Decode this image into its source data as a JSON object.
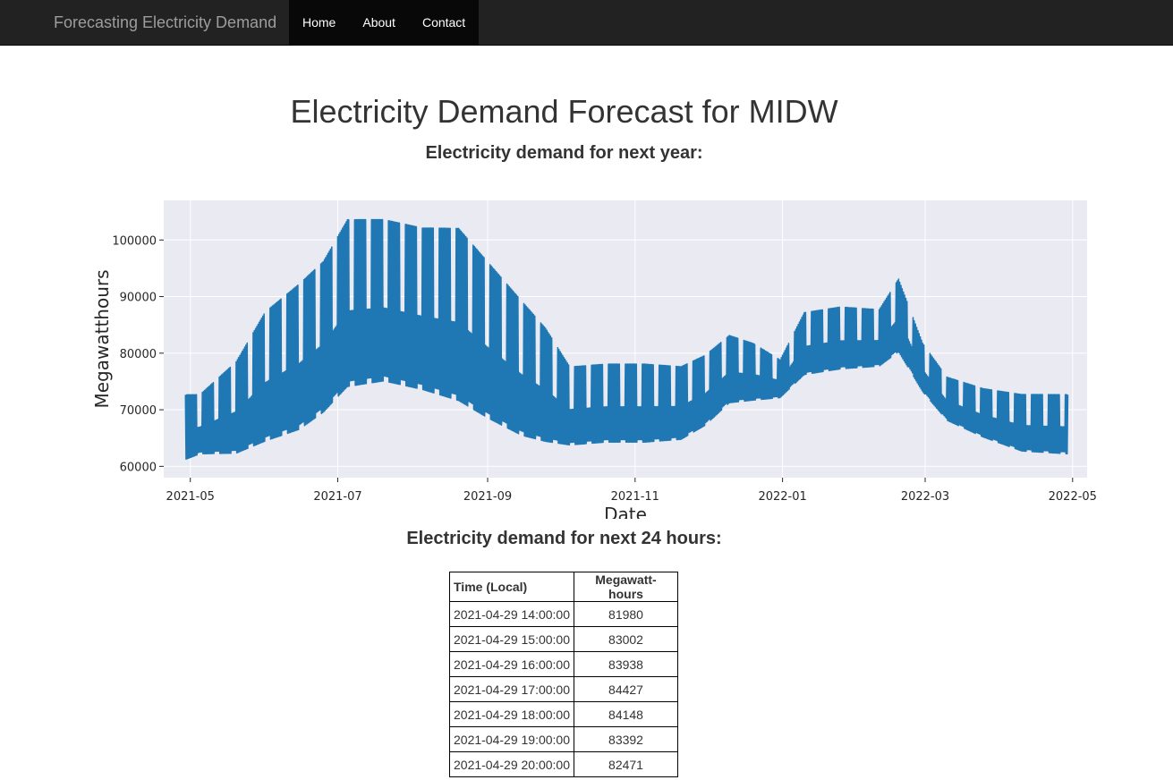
{
  "navbar": {
    "brand": "Forecasting Electricity Demand",
    "links": [
      "Home",
      "About",
      "Contact"
    ]
  },
  "page": {
    "title": "Electricity Demand Forecast for MIDW",
    "year_heading": "Electricity demand for next year:",
    "day_heading": "Electricity demand for next 24 hours:"
  },
  "chart_data": {
    "type": "line",
    "xlabel": "Date",
    "ylabel": "Megawatthours",
    "x_ticks": [
      "2021-05",
      "2021-07",
      "2021-09",
      "2021-11",
      "2022-01",
      "2022-03",
      "2022-05"
    ],
    "y_ticks": [
      60000,
      70000,
      80000,
      90000,
      100000
    ],
    "xlim": [
      "2021-04-20",
      "2022-05-07"
    ],
    "ylim": [
      58000,
      107000
    ],
    "grid": true,
    "color": "#1f77b4",
    "background": "#eaeaf2",
    "envelope": {
      "dates": [
        "2021-04-29",
        "2021-05-05",
        "2021-05-20",
        "2021-06-01",
        "2021-06-15",
        "2021-06-25",
        "2021-07-05",
        "2021-07-20",
        "2021-08-05",
        "2021-08-20",
        "2021-09-01",
        "2021-09-15",
        "2021-09-25",
        "2021-10-05",
        "2021-10-20",
        "2021-11-05",
        "2021-11-20",
        "2021-11-30",
        "2021-12-10",
        "2021-12-20",
        "2021-12-31",
        "2022-01-10",
        "2022-01-25",
        "2022-02-10",
        "2022-02-18",
        "2022-02-28",
        "2022-03-10",
        "2022-03-25",
        "2022-04-10",
        "2022-04-29"
      ],
      "high": [
        73000,
        73000,
        79000,
        88000,
        93000,
        97000,
        104500,
        104500,
        103000,
        103000,
        97000,
        90000,
        85000,
        78000,
        78500,
        78500,
        78000,
        80000,
        83500,
        82000,
        79000,
        87500,
        88500,
        88000,
        93500,
        82000,
        76000,
        74000,
        73000,
        73000
      ],
      "low": [
        61000,
        62000,
        62000,
        64000,
        66000,
        69000,
        73500,
        74500,
        73000,
        71000,
        68000,
        65000,
        64000,
        63500,
        64000,
        64000,
        64500,
        67000,
        71000,
        71500,
        72000,
        76000,
        77000,
        77500,
        80000,
        73000,
        68000,
        65000,
        62500,
        62000
      ]
    }
  },
  "table": {
    "headers": [
      "Time (Local)",
      "Megawatt-hours"
    ],
    "rows": [
      [
        "2021-04-29 14:00:00",
        "81980"
      ],
      [
        "2021-04-29 15:00:00",
        "83002"
      ],
      [
        "2021-04-29 16:00:00",
        "83938"
      ],
      [
        "2021-04-29 17:00:00",
        "84427"
      ],
      [
        "2021-04-29 18:00:00",
        "84148"
      ],
      [
        "2021-04-29 19:00:00",
        "83392"
      ],
      [
        "2021-04-29 20:00:00",
        "82471"
      ]
    ]
  }
}
